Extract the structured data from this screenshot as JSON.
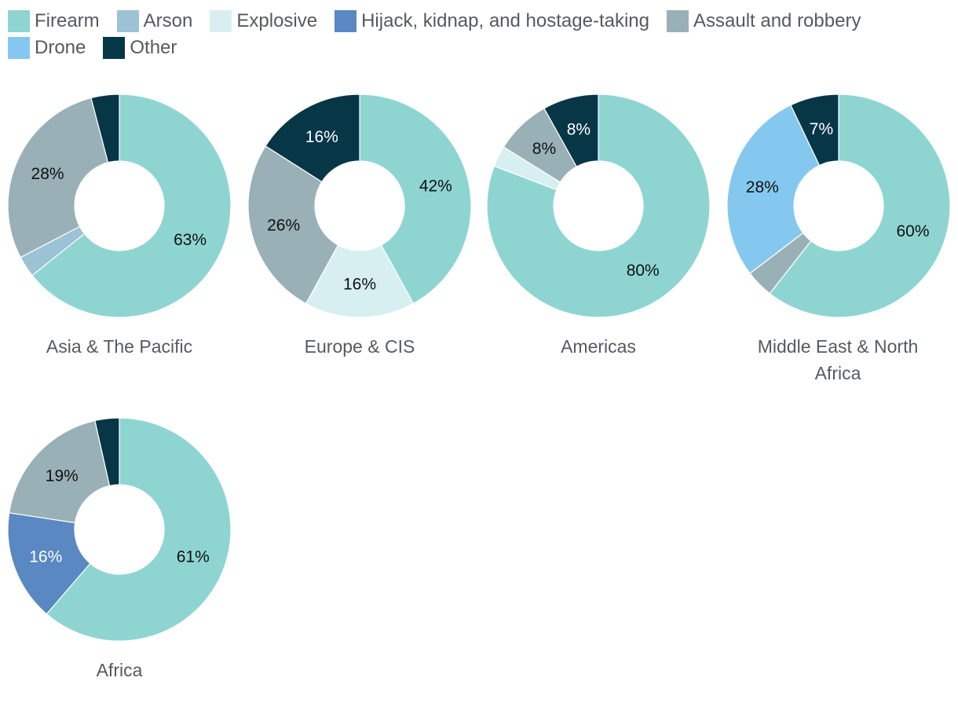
{
  "legend": [
    {
      "key": "firearm",
      "label": "Firearm",
      "color": "#8ed5d2"
    },
    {
      "key": "arson",
      "label": "Arson",
      "color": "#9cc3d5"
    },
    {
      "key": "explosive",
      "label": "Explosive",
      "color": "#d7eff0"
    },
    {
      "key": "hijack",
      "label": "Hijack, kidnap, and hostage-taking",
      "color": "#5a88c2"
    },
    {
      "key": "assault",
      "label": "Assault and robbery",
      "color": "#99b0b7"
    },
    {
      "key": "drone",
      "label": "Drone",
      "color": "#84c8ef"
    },
    {
      "key": "other",
      "label": "Other",
      "color": "#073647"
    }
  ],
  "chart_data": [
    {
      "type": "pie",
      "title": "Asia & The Pacific",
      "slices": [
        {
          "category": "firearm",
          "value": 63,
          "label": "63%"
        },
        {
          "category": "arson",
          "value": 3,
          "label": ""
        },
        {
          "category": "assault",
          "value": 28,
          "label": "28%"
        },
        {
          "category": "other",
          "value": 4,
          "label": ""
        }
      ]
    },
    {
      "type": "pie",
      "title": "Europe & CIS",
      "slices": [
        {
          "category": "firearm",
          "value": 42,
          "label": "42%"
        },
        {
          "category": "explosive",
          "value": 16,
          "label": "16%"
        },
        {
          "category": "assault",
          "value": 26,
          "label": "26%"
        },
        {
          "category": "other",
          "value": 16,
          "label": "16%"
        }
      ]
    },
    {
      "type": "pie",
      "title": "Americas",
      "slices": [
        {
          "category": "firearm",
          "value": 80,
          "label": "80%"
        },
        {
          "category": "explosive",
          "value": 3,
          "label": ""
        },
        {
          "category": "assault",
          "value": 8,
          "label": "8%"
        },
        {
          "category": "other",
          "value": 8,
          "label": "8%"
        }
      ]
    },
    {
      "type": "pie",
      "title_lines": [
        "Middle East & North",
        "Africa"
      ],
      "slices": [
        {
          "category": "firearm",
          "value": 60,
          "label": "60%"
        },
        {
          "category": "assault",
          "value": 4,
          "label": ""
        },
        {
          "category": "drone",
          "value": 28,
          "label": "28%"
        },
        {
          "category": "other",
          "value": 7,
          "label": "7%"
        }
      ]
    },
    {
      "type": "pie",
      "title": "Africa",
      "slices": [
        {
          "category": "firearm",
          "value": 61,
          "label": "61%"
        },
        {
          "category": "hijack",
          "value": 16,
          "label": "16%"
        },
        {
          "category": "assault",
          "value": 19,
          "label": "19%"
        },
        {
          "category": "other",
          "value": 3.5,
          "label": ""
        }
      ]
    }
  ]
}
